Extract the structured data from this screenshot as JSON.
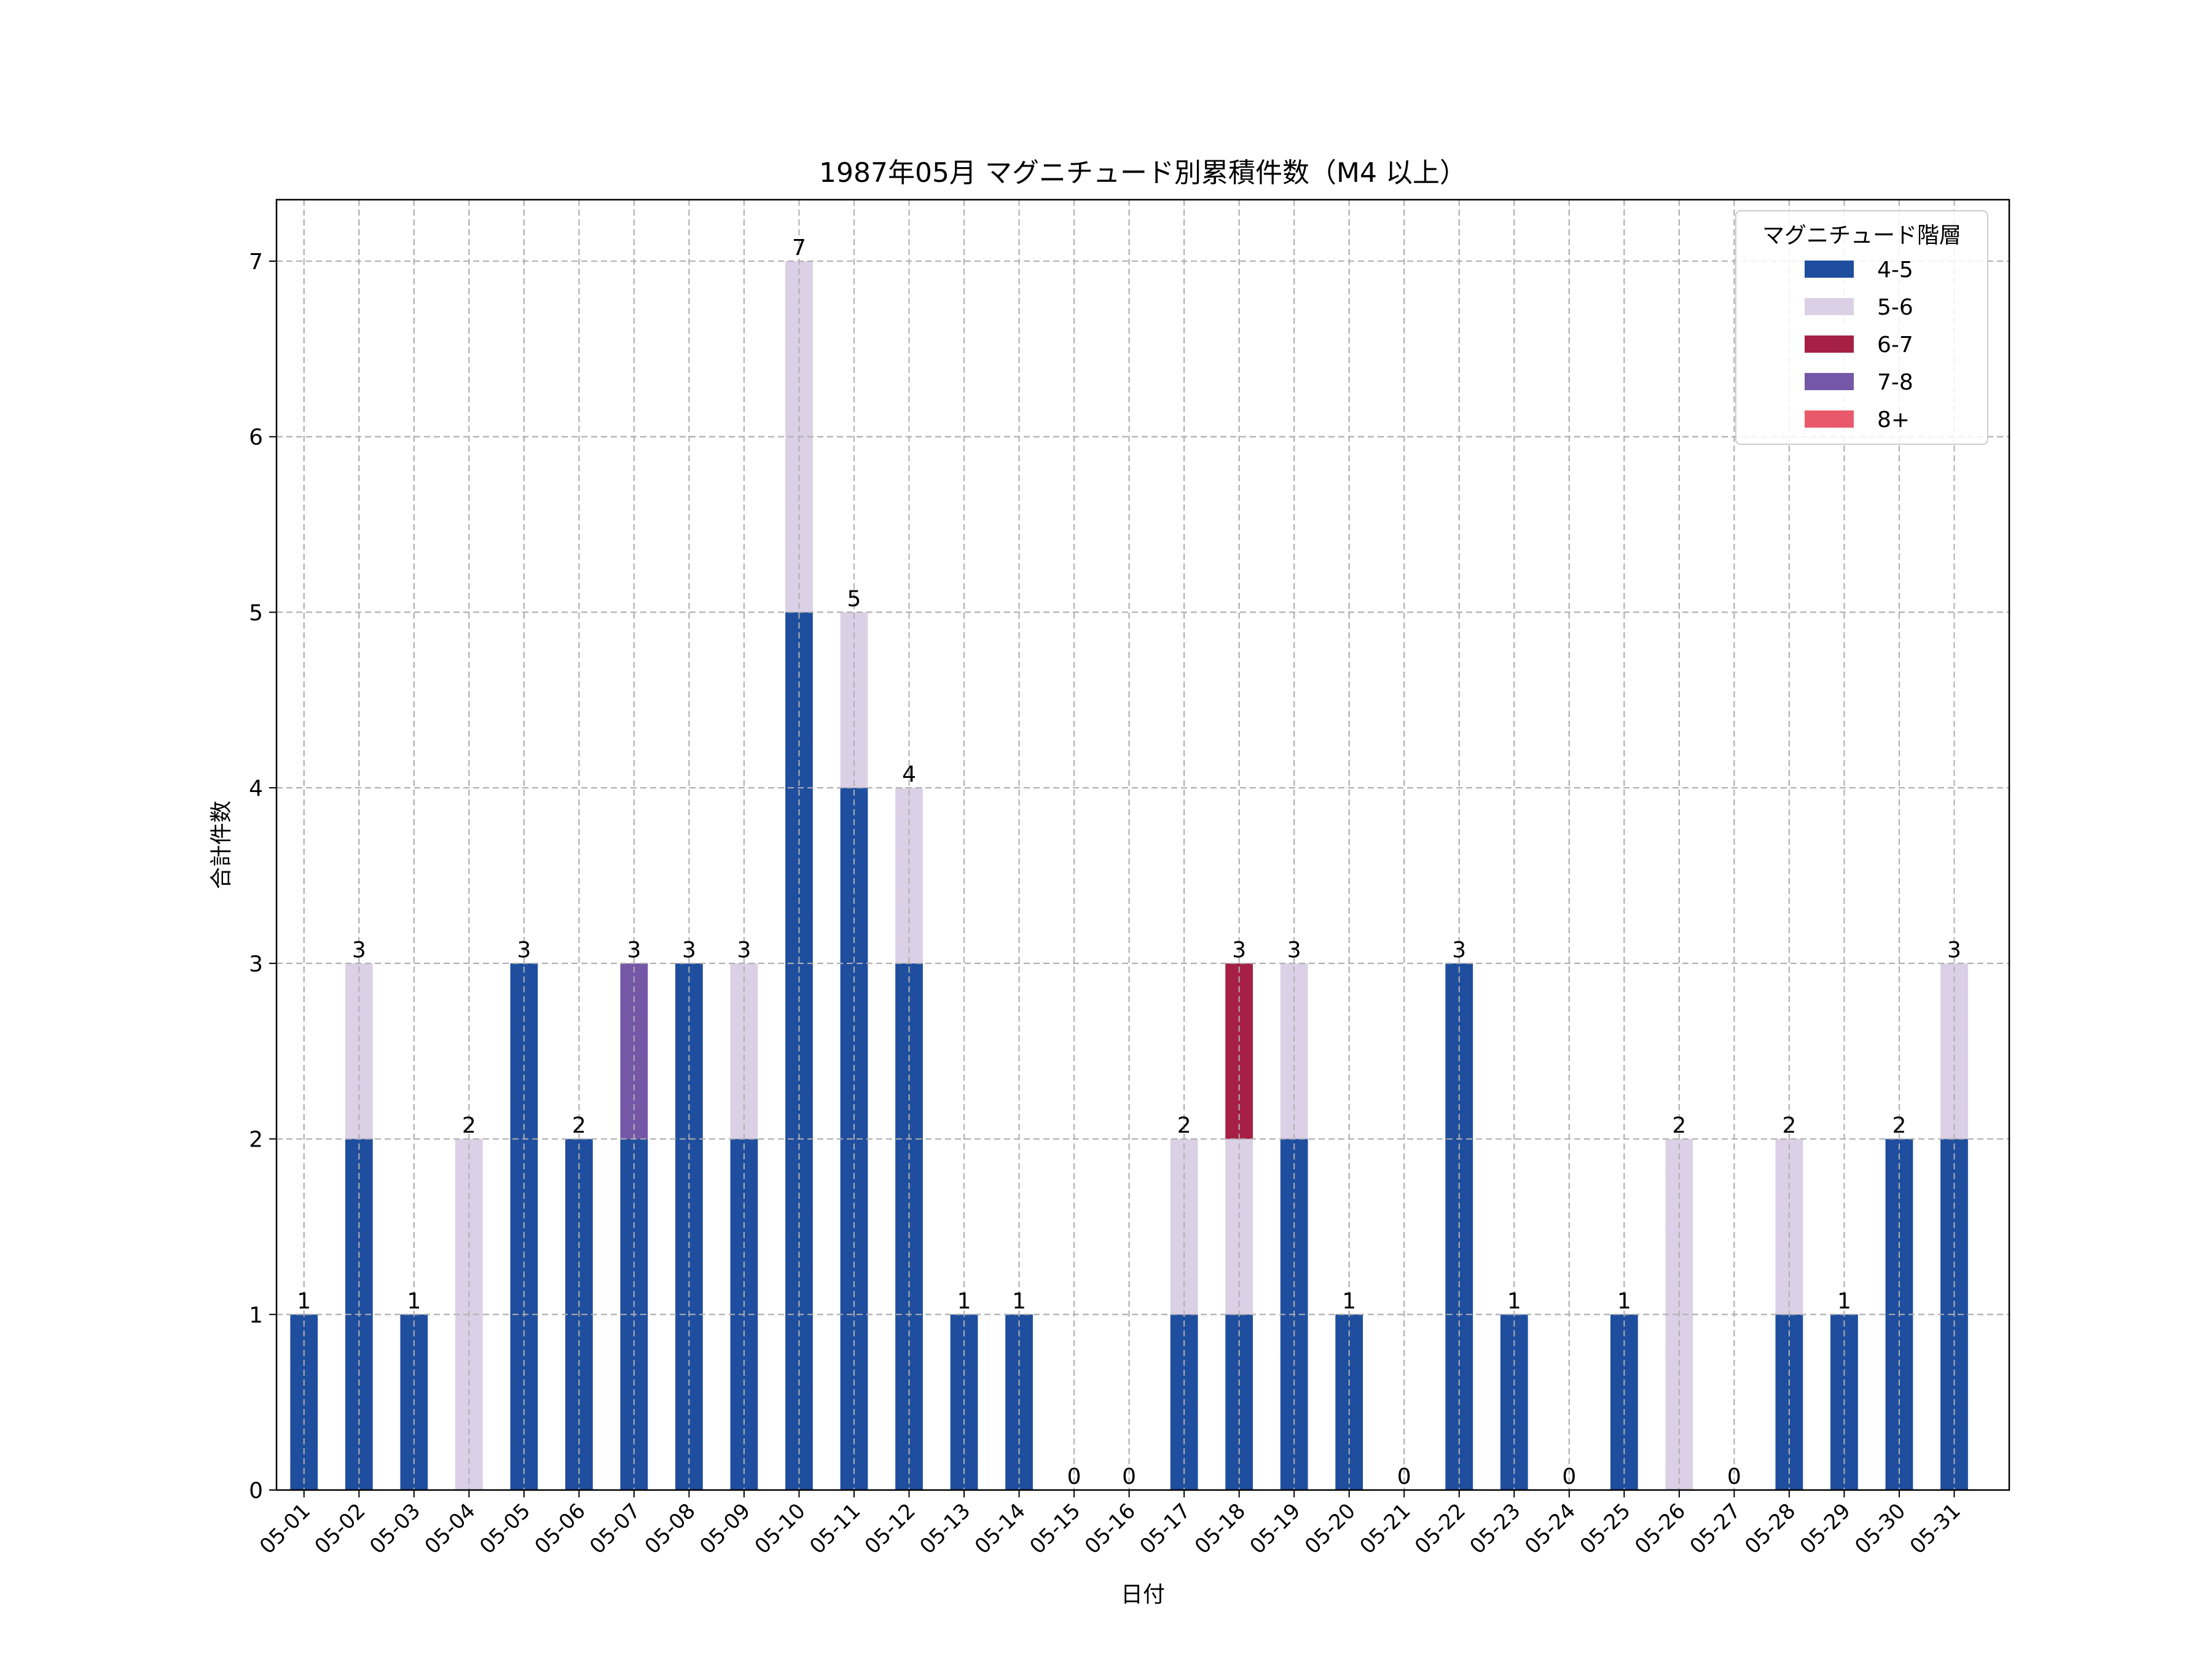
{
  "chart_data": {
    "type": "bar",
    "stacked": true,
    "title": "1987年05月 マグニチュード別累積件数（M4 以上）",
    "xlabel": "日付",
    "ylabel": "合計件数",
    "ylim": [
      0,
      7.35
    ],
    "yticks": [
      0,
      1,
      2,
      3,
      4,
      5,
      6,
      7
    ],
    "grid": true,
    "legend": {
      "title": "マグニチュード階層",
      "position": "top-right"
    },
    "categories": [
      "05-01",
      "05-02",
      "05-03",
      "05-04",
      "05-05",
      "05-06",
      "05-07",
      "05-08",
      "05-09",
      "05-10",
      "05-11",
      "05-12",
      "05-13",
      "05-14",
      "05-15",
      "05-16",
      "05-17",
      "05-18",
      "05-19",
      "05-20",
      "05-21",
      "05-22",
      "05-23",
      "05-24",
      "05-25",
      "05-26",
      "05-27",
      "05-28",
      "05-29",
      "05-30",
      "05-31"
    ],
    "series": [
      {
        "name": "4-5",
        "color": "#1f4e9e",
        "values": [
          1,
          2,
          1,
          0,
          3,
          2,
          2,
          3,
          2,
          5,
          4,
          3,
          1,
          1,
          0,
          0,
          1,
          1,
          2,
          1,
          0,
          3,
          1,
          0,
          1,
          0,
          0,
          1,
          1,
          2,
          2
        ]
      },
      {
        "name": "5-6",
        "color": "#dbd0e6",
        "values": [
          0,
          1,
          0,
          2,
          0,
          0,
          0,
          0,
          1,
          2,
          1,
          1,
          0,
          0,
          0,
          0,
          1,
          1,
          1,
          0,
          0,
          0,
          0,
          0,
          0,
          2,
          0,
          1,
          0,
          0,
          1
        ]
      },
      {
        "name": "6-7",
        "color": "#a61f45",
        "values": [
          0,
          0,
          0,
          0,
          0,
          0,
          0,
          0,
          0,
          0,
          0,
          0,
          0,
          0,
          0,
          0,
          0,
          1,
          0,
          0,
          0,
          0,
          0,
          0,
          0,
          0,
          0,
          0,
          0,
          0,
          0
        ]
      },
      {
        "name": "7-8",
        "color": "#7457a6",
        "values": [
          0,
          0,
          0,
          0,
          0,
          0,
          1,
          0,
          0,
          0,
          0,
          0,
          0,
          0,
          0,
          0,
          0,
          0,
          0,
          0,
          0,
          0,
          0,
          0,
          0,
          0,
          0,
          0,
          0,
          0,
          0
        ]
      },
      {
        "name": "8+",
        "color": "#e85a6b",
        "values": [
          0,
          0,
          0,
          0,
          0,
          0,
          0,
          0,
          0,
          0,
          0,
          0,
          0,
          0,
          0,
          0,
          0,
          0,
          0,
          0,
          0,
          0,
          0,
          0,
          0,
          0,
          0,
          0,
          0,
          0,
          0
        ]
      }
    ],
    "totals": [
      1,
      3,
      1,
      2,
      3,
      2,
      3,
      3,
      3,
      7,
      5,
      4,
      1,
      1,
      0,
      0,
      2,
      3,
      3,
      1,
      0,
      3,
      1,
      0,
      1,
      2,
      0,
      2,
      1,
      2,
      3
    ]
  }
}
